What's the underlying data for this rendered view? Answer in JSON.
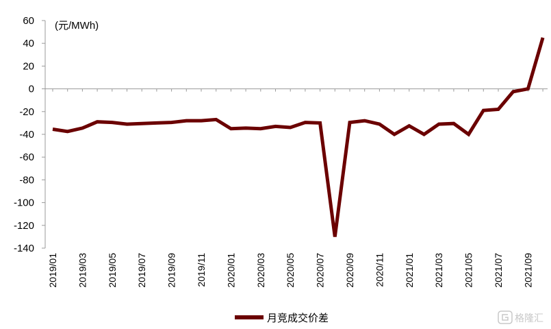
{
  "chart_data": {
    "type": "line",
    "unit_label": "(元/MWh)",
    "ylim": [
      -140,
      60
    ],
    "yticks": [
      60,
      40,
      20,
      0,
      -20,
      -40,
      -60,
      -80,
      -100,
      -120,
      -140
    ],
    "xtick_labels": [
      "2019/01",
      "2019/03",
      "2019/05",
      "2019/07",
      "2019/09",
      "2019/11",
      "2020/01",
      "2020/03",
      "2020/05",
      "2020/07",
      "2020/09",
      "2020/11",
      "2021/01",
      "2021/03",
      "2021/05",
      "2021/07",
      "2021/09"
    ],
    "x": [
      "2019/01",
      "2019/02",
      "2019/03",
      "2019/04",
      "2019/05",
      "2019/06",
      "2019/07",
      "2019/08",
      "2019/09",
      "2019/10",
      "2019/11",
      "2019/12",
      "2020/01",
      "2020/02",
      "2020/03",
      "2020/04",
      "2020/05",
      "2020/06",
      "2020/07",
      "2020/08",
      "2020/09",
      "2020/10",
      "2020/11",
      "2020/12",
      "2021/01",
      "2021/02",
      "2021/03",
      "2021/04",
      "2021/05",
      "2021/06",
      "2021/07",
      "2021/08",
      "2021/09",
      "2021/10"
    ],
    "series": [
      {
        "name": "月竞成交价差",
        "color": "#6b0000",
        "values": [
          -35.5,
          -37.5,
          -34.5,
          -29,
          -29.5,
          -31,
          -30.5,
          -30,
          -29.5,
          -28,
          -28,
          -27,
          -35,
          -34.5,
          -35,
          -33,
          -34,
          -29.5,
          -30,
          -130,
          -29.5,
          -28,
          -31,
          -40,
          -32.5,
          -40,
          -31,
          -30.5,
          -40,
          -19,
          -18,
          -2.5,
          0,
          45
        ]
      }
    ],
    "grid": false,
    "legend": "bottom-center"
  },
  "watermark": {
    "icon": "gelonghui-logo-icon",
    "text": "格隆汇"
  }
}
